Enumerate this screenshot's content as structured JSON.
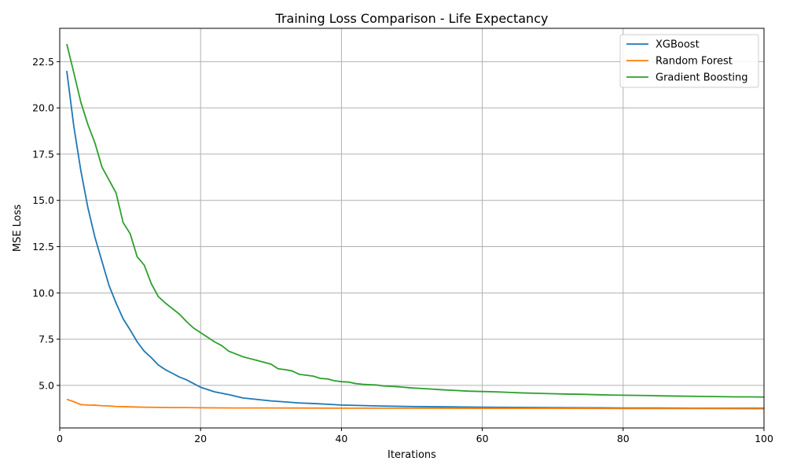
{
  "chart_data": {
    "type": "line",
    "title": "Training Loss Comparison - Life Expectancy",
    "xlabel": "Iterations",
    "ylabel": "MSE Loss",
    "xlim": [
      0,
      100
    ],
    "ylim": [
      2.7,
      24.3
    ],
    "x_ticks": [
      0,
      20,
      40,
      60,
      80,
      100
    ],
    "x_tick_labels": [
      "0",
      "20",
      "40",
      "60",
      "80",
      "100"
    ],
    "y_ticks": [
      5.0,
      7.5,
      10.0,
      12.5,
      15.0,
      17.5,
      20.0,
      22.5
    ],
    "y_tick_labels": [
      "5.0",
      "7.5",
      "10.0",
      "12.5",
      "15.0",
      "17.5",
      "20.0",
      "22.5"
    ],
    "grid": true,
    "legend_position": "top-right",
    "series": [
      {
        "name": "XGBoost",
        "color": "#1f77b4",
        "x": [
          1,
          2,
          3,
          4,
          5,
          6,
          7,
          8,
          9,
          10,
          11,
          12,
          13,
          14,
          15,
          16,
          17,
          18,
          19,
          20,
          22,
          24,
          26,
          28,
          30,
          32,
          34,
          36,
          38,
          40,
          45,
          50,
          55,
          60,
          65,
          70,
          75,
          80,
          85,
          90,
          95,
          100
        ],
        "y": [
          22.0,
          19.0,
          16.6,
          14.6,
          13.0,
          11.7,
          10.4,
          9.45,
          8.6,
          8.0,
          7.35,
          6.85,
          6.5,
          6.1,
          5.85,
          5.65,
          5.45,
          5.3,
          5.1,
          4.9,
          4.65,
          4.5,
          4.32,
          4.24,
          4.16,
          4.11,
          4.05,
          4.02,
          3.98,
          3.94,
          3.89,
          3.86,
          3.84,
          3.82,
          3.81,
          3.8,
          3.79,
          3.78,
          3.78,
          3.77,
          3.77,
          3.77
        ]
      },
      {
        "name": "Random Forest",
        "color": "#ff7f0e",
        "x": [
          1,
          2,
          3,
          4,
          5,
          6,
          7,
          8,
          9,
          10,
          11,
          12,
          14,
          16,
          18,
          20,
          25,
          30,
          40,
          50,
          60,
          70,
          80,
          90,
          100
        ],
        "y": [
          4.25,
          4.12,
          3.96,
          3.94,
          3.93,
          3.9,
          3.89,
          3.86,
          3.85,
          3.84,
          3.83,
          3.82,
          3.81,
          3.8,
          3.8,
          3.79,
          3.78,
          3.78,
          3.77,
          3.77,
          3.76,
          3.76,
          3.75,
          3.75,
          3.74
        ]
      },
      {
        "name": "Gradient Boosting",
        "color": "#2ca02c",
        "x": [
          1,
          2,
          3,
          4,
          5,
          6,
          7,
          8,
          9,
          10,
          11,
          12,
          13,
          14,
          15,
          16,
          17,
          18,
          19,
          20,
          21,
          22,
          23,
          24,
          25,
          26,
          27,
          28,
          29,
          30,
          31,
          32,
          33,
          34,
          35,
          36,
          37,
          38,
          39,
          40,
          41,
          42,
          43,
          44,
          45,
          46,
          48,
          50,
          52,
          54,
          56,
          58,
          60,
          62,
          64,
          66,
          68,
          70,
          72,
          74,
          76,
          78,
          80,
          82,
          84,
          86,
          88,
          90,
          92,
          94,
          96,
          98,
          100
        ],
        "y": [
          23.45,
          21.9,
          20.3,
          19.1,
          18.1,
          16.8,
          16.1,
          15.4,
          13.8,
          13.2,
          11.95,
          11.5,
          10.5,
          9.8,
          9.45,
          9.15,
          8.85,
          8.45,
          8.1,
          7.85,
          7.6,
          7.35,
          7.15,
          6.85,
          6.7,
          6.55,
          6.45,
          6.35,
          6.25,
          6.15,
          5.9,
          5.85,
          5.78,
          5.6,
          5.55,
          5.5,
          5.38,
          5.35,
          5.25,
          5.2,
          5.18,
          5.1,
          5.06,
          5.04,
          5.02,
          4.97,
          4.93,
          4.86,
          4.82,
          4.77,
          4.73,
          4.69,
          4.67,
          4.65,
          4.62,
          4.59,
          4.57,
          4.55,
          4.53,
          4.52,
          4.5,
          4.48,
          4.47,
          4.46,
          4.45,
          4.43,
          4.42,
          4.41,
          4.4,
          4.39,
          4.38,
          4.38,
          4.37
        ]
      }
    ]
  }
}
